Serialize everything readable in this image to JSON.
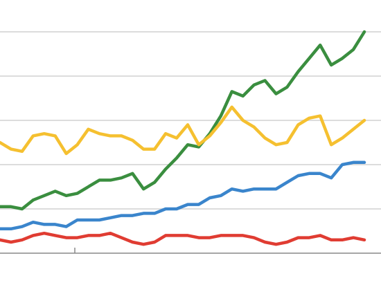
{
  "chart_data": {
    "type": "line",
    "title": "",
    "xlabel": "",
    "ylabel": "",
    "grid": true,
    "legend": "none",
    "ylim": [
      0,
      100
    ],
    "yticks": [
      20,
      40,
      60,
      80
    ],
    "series": [
      {
        "color": "#3a8e3f",
        "values": [
          21,
          21,
          20,
          24,
          26,
          28,
          26,
          27,
          30,
          33,
          33,
          34,
          36,
          29,
          32,
          38,
          43,
          49,
          48,
          54,
          62,
          73,
          71,
          76,
          78,
          72,
          75,
          82,
          88,
          94,
          85,
          88,
          92,
          100
        ]
      },
      {
        "color": "#f5c030",
        "values": [
          50,
          47,
          46,
          53,
          54,
          53,
          45,
          49,
          56,
          54,
          53,
          53,
          51,
          47,
          47,
          54,
          52,
          58,
          49,
          53,
          59,
          66,
          60,
          57,
          52,
          49,
          50,
          58,
          61,
          62,
          49,
          52,
          56,
          60
        ]
      },
      {
        "color": "#3a85cc",
        "values": [
          11,
          11,
          12,
          14,
          13,
          13,
          12,
          15,
          15,
          15,
          16,
          17,
          17,
          18,
          18,
          20,
          20,
          22,
          22,
          25,
          26,
          29,
          28,
          29,
          29,
          29,
          32,
          35,
          36,
          36,
          34,
          40,
          41,
          41
        ]
      },
      {
        "color": "#e03c32",
        "values": [
          6,
          5,
          6,
          8,
          9,
          8,
          7,
          7,
          8,
          8,
          9,
          7,
          5,
          4,
          5,
          8,
          8,
          8,
          7,
          7,
          8,
          8,
          8,
          7,
          5,
          4,
          5,
          7,
          7,
          8,
          6,
          6,
          7,
          6
        ]
      }
    ]
  }
}
